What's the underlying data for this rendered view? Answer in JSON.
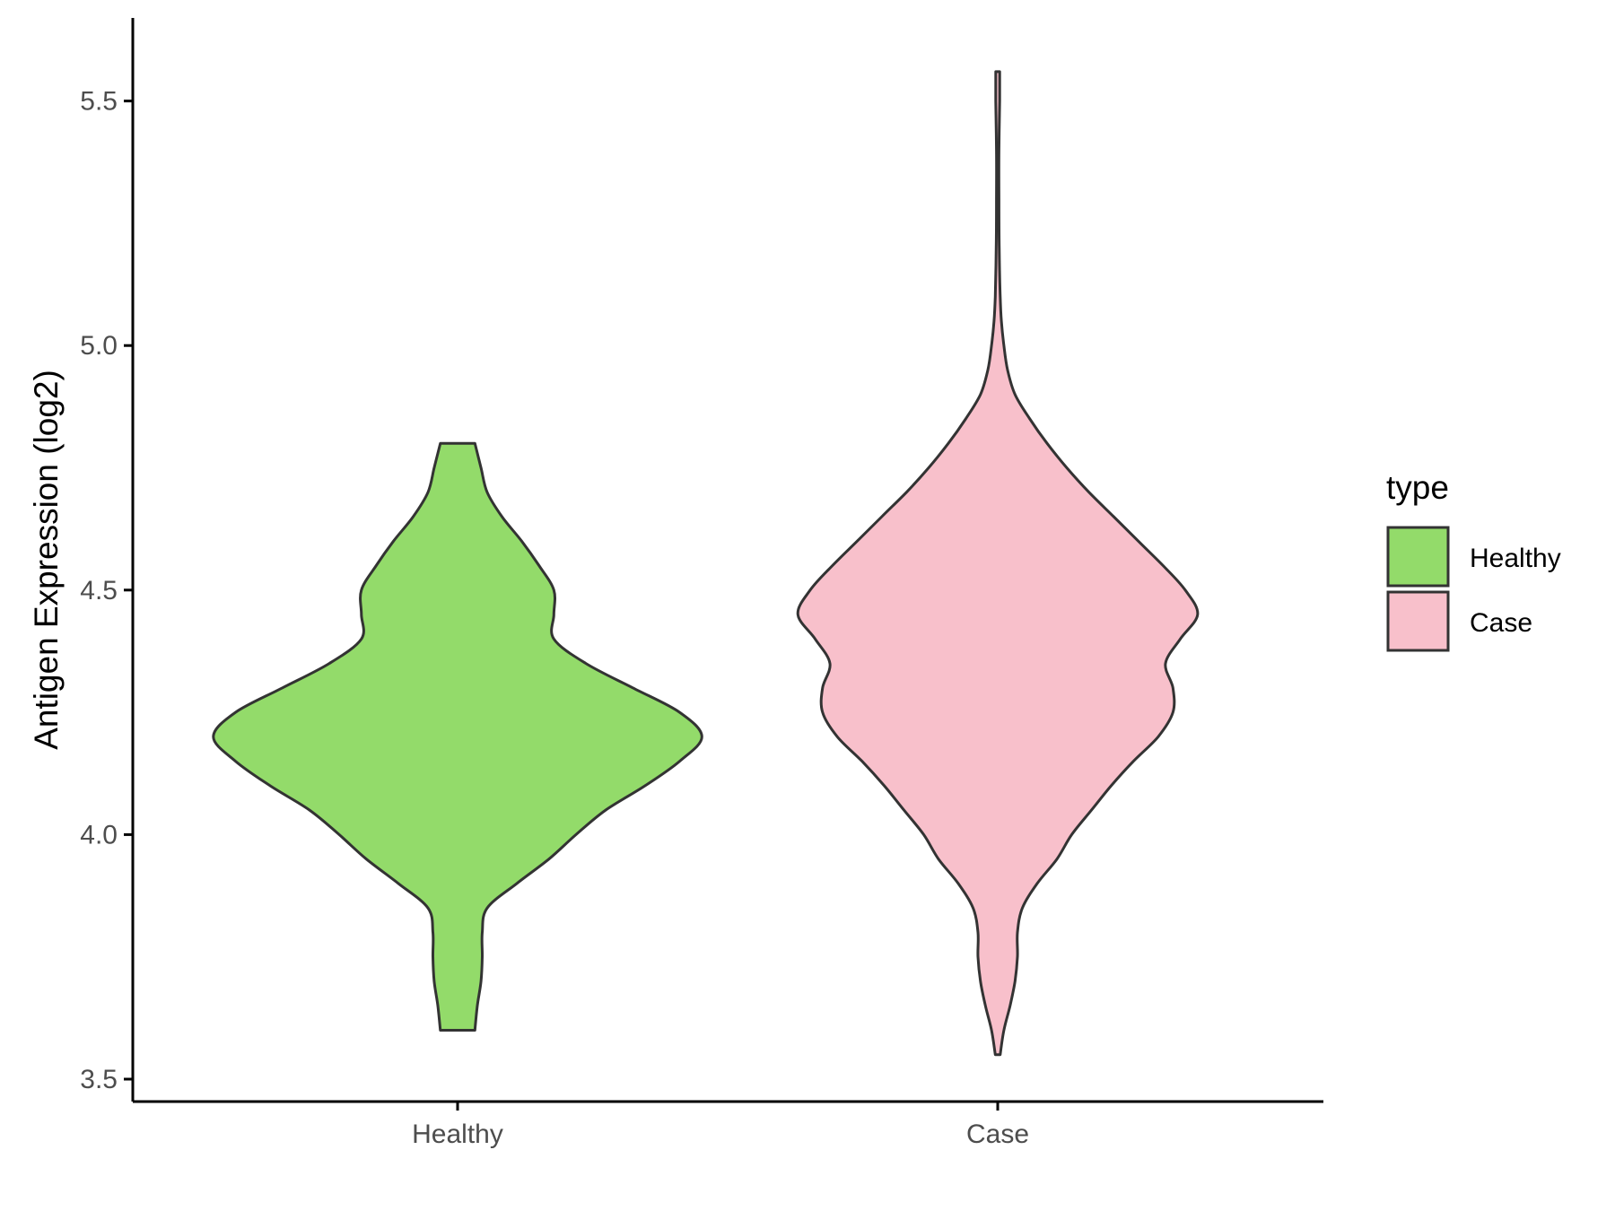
{
  "chart_data": {
    "type": "violin",
    "title": "",
    "xlabel": "",
    "ylabel": "Antigen Expression (log2)",
    "ylim": [
      3.45,
      5.65
    ],
    "yticks": [
      "3.5",
      "4.0",
      "4.5",
      "5.0",
      "5.5"
    ],
    "categories": [
      "Healthy",
      "Case"
    ],
    "legend": {
      "title": "type",
      "position": "right",
      "entries": [
        {
          "label": "Healthy",
          "color": "#93DB6A"
        },
        {
          "label": "Case",
          "color": "#F8C0CB"
        }
      ]
    },
    "series": [
      {
        "category": "Healthy",
        "color": "#93DB6A",
        "min": 3.6,
        "max": 4.8,
        "profile": [
          [
            3.6,
            0.07
          ],
          [
            3.65,
            0.08
          ],
          [
            3.7,
            0.095
          ],
          [
            3.75,
            0.1
          ],
          [
            3.8,
            0.1
          ],
          [
            3.85,
            0.12
          ],
          [
            3.9,
            0.24
          ],
          [
            3.95,
            0.37
          ],
          [
            4.0,
            0.48
          ],
          [
            4.05,
            0.6
          ],
          [
            4.1,
            0.76
          ],
          [
            4.15,
            0.9
          ],
          [
            4.2,
            0.99
          ],
          [
            4.25,
            0.9
          ],
          [
            4.3,
            0.71
          ],
          [
            4.35,
            0.52
          ],
          [
            4.4,
            0.39
          ],
          [
            4.45,
            0.39
          ],
          [
            4.5,
            0.39
          ],
          [
            4.55,
            0.33
          ],
          [
            4.6,
            0.26
          ],
          [
            4.65,
            0.18
          ],
          [
            4.7,
            0.12
          ],
          [
            4.75,
            0.095
          ],
          [
            4.8,
            0.07
          ]
        ]
      },
      {
        "category": "Case",
        "color": "#F8C0CB",
        "min": 3.55,
        "max": 5.56,
        "profile": [
          [
            3.55,
            0.01
          ],
          [
            3.6,
            0.025
          ],
          [
            3.65,
            0.05
          ],
          [
            3.7,
            0.07
          ],
          [
            3.75,
            0.08
          ],
          [
            3.8,
            0.08
          ],
          [
            3.85,
            0.1
          ],
          [
            3.9,
            0.16
          ],
          [
            3.95,
            0.24
          ],
          [
            4.0,
            0.3
          ],
          [
            4.05,
            0.38
          ],
          [
            4.1,
            0.46
          ],
          [
            4.15,
            0.55
          ],
          [
            4.2,
            0.65
          ],
          [
            4.25,
            0.71
          ],
          [
            4.3,
            0.71
          ],
          [
            4.35,
            0.68
          ],
          [
            4.4,
            0.74
          ],
          [
            4.45,
            0.81
          ],
          [
            4.5,
            0.76
          ],
          [
            4.55,
            0.67
          ],
          [
            4.6,
            0.57
          ],
          [
            4.65,
            0.47
          ],
          [
            4.7,
            0.37
          ],
          [
            4.75,
            0.28
          ],
          [
            4.8,
            0.2
          ],
          [
            4.85,
            0.13
          ],
          [
            4.9,
            0.07
          ],
          [
            4.95,
            0.04
          ],
          [
            5.0,
            0.025
          ],
          [
            5.05,
            0.015
          ],
          [
            5.1,
            0.01
          ],
          [
            5.2,
            0.006
          ],
          [
            5.3,
            0.005
          ],
          [
            5.4,
            0.005
          ],
          [
            5.5,
            0.008
          ],
          [
            5.56,
            0.008
          ]
        ]
      }
    ]
  }
}
